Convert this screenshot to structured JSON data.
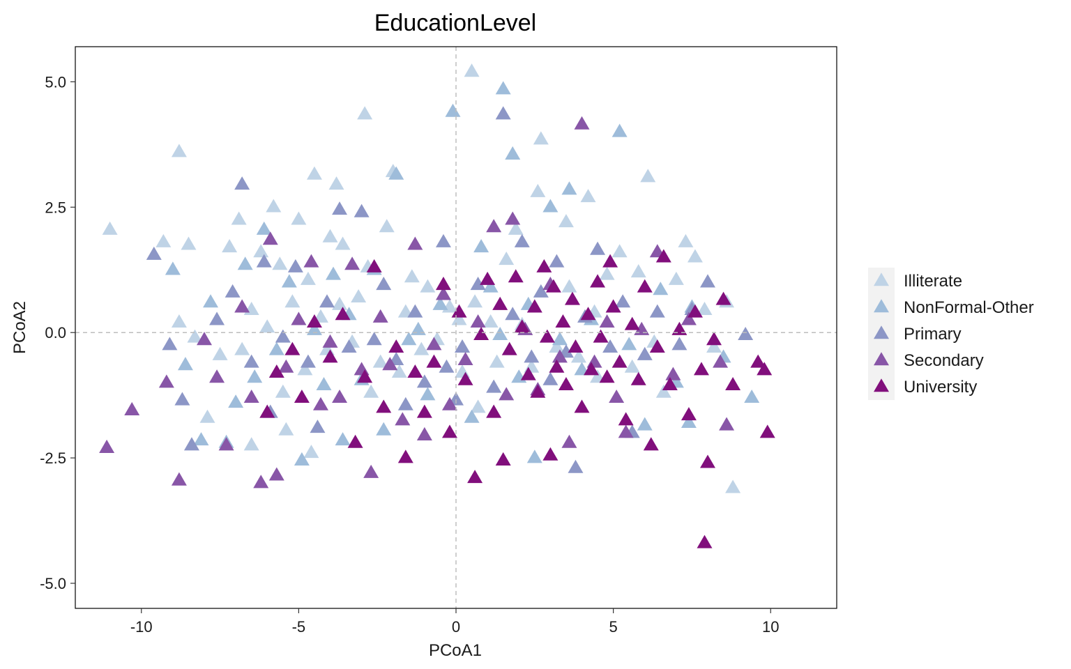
{
  "chart_data": {
    "type": "scatter",
    "title": "EducationLevel",
    "xlabel": "PCoA1",
    "ylabel": "PCoA2",
    "xlim": [
      -12.1,
      12.1
    ],
    "ylim": [
      -5.5,
      5.7
    ],
    "x_ticks": [
      {
        "value": -10,
        "label": "-10"
      },
      {
        "value": -5,
        "label": "-5"
      },
      {
        "value": 0,
        "label": "0"
      },
      {
        "value": 5,
        "label": "5"
      },
      {
        "value": 10,
        "label": "10"
      }
    ],
    "y_ticks": [
      {
        "value": -5,
        "label": "-5.0"
      },
      {
        "value": -2.5,
        "label": "-2.5"
      },
      {
        "value": 0,
        "label": "0.0"
      },
      {
        "value": 2.5,
        "label": "2.5"
      },
      {
        "value": 5,
        "label": "5.0"
      }
    ],
    "reference_lines": {
      "x": 0,
      "y": 0,
      "style": "dashed",
      "color": "#bdbdbd"
    },
    "grid": false,
    "legend_position": "right",
    "marker": "triangle",
    "series": [
      {
        "name": "Illiterate",
        "color": "#bfd3e6",
        "points": [
          [
            -11,
            2.05
          ],
          [
            -9.3,
            1.8
          ],
          [
            -8.8,
            3.6
          ],
          [
            -8.5,
            1.75
          ],
          [
            -8.8,
            0.2
          ],
          [
            -8.3,
            -0.1
          ],
          [
            -7.9,
            -1.7
          ],
          [
            -7.5,
            -0.45
          ],
          [
            -7.2,
            1.7
          ],
          [
            -6.9,
            2.25
          ],
          [
            -6.8,
            -0.35
          ],
          [
            -6.5,
            -2.25
          ],
          [
            -6.5,
            0.45
          ],
          [
            -6.2,
            1.6
          ],
          [
            -6.0,
            0.1
          ],
          [
            -5.8,
            2.5
          ],
          [
            -5.6,
            1.35
          ],
          [
            -5.5,
            -1.2
          ],
          [
            -5.4,
            -1.95
          ],
          [
            -5.2,
            0.6
          ],
          [
            -5.0,
            2.25
          ],
          [
            -4.8,
            -0.75
          ],
          [
            -4.7,
            1.05
          ],
          [
            -4.6,
            -2.4
          ],
          [
            -4.5,
            3.15
          ],
          [
            -4.3,
            0.3
          ],
          [
            -4.1,
            -0.35
          ],
          [
            -4.0,
            1.9
          ],
          [
            -3.8,
            2.95
          ],
          [
            -3.7,
            0.55
          ],
          [
            -3.6,
            1.75
          ],
          [
            -3.3,
            -0.2
          ],
          [
            -3.1,
            0.7
          ],
          [
            -2.9,
            4.35
          ],
          [
            -2.8,
            1.3
          ],
          [
            -2.7,
            -1.2
          ],
          [
            -2.4,
            -0.6
          ],
          [
            -2.2,
            2.1
          ],
          [
            -2.0,
            3.2
          ],
          [
            -1.8,
            -0.8
          ],
          [
            -1.6,
            0.4
          ],
          [
            -1.4,
            1.1
          ],
          [
            -1.1,
            -0.35
          ],
          [
            -0.9,
            0.9
          ],
          [
            -0.6,
            -0.15
          ],
          [
            -0.2,
            0.5
          ],
          [
            0.1,
            0.25
          ],
          [
            0.2,
            -0.8
          ],
          [
            0.5,
            5.2
          ],
          [
            0.6,
            0.6
          ],
          [
            0.7,
            -1.5
          ],
          [
            1.1,
            0.2
          ],
          [
            1.3,
            -0.6
          ],
          [
            1.6,
            1.45
          ],
          [
            1.9,
            2.05
          ],
          [
            2.1,
            0.15
          ],
          [
            2.4,
            -0.7
          ],
          [
            2.6,
            2.8
          ],
          [
            2.7,
            3.85
          ],
          [
            3.2,
            -0.3
          ],
          [
            3.5,
            2.2
          ],
          [
            3.6,
            0.9
          ],
          [
            3.9,
            -0.5
          ],
          [
            4.2,
            2.7
          ],
          [
            4.4,
            0.4
          ],
          [
            4.5,
            -0.9
          ],
          [
            4.8,
            1.15
          ],
          [
            5.2,
            1.6
          ],
          [
            5.6,
            -0.7
          ],
          [
            5.8,
            1.2
          ],
          [
            6.1,
            3.1
          ],
          [
            6.3,
            -0.2
          ],
          [
            6.6,
            -1.2
          ],
          [
            7.0,
            1.05
          ],
          [
            7.3,
            1.8
          ],
          [
            7.6,
            1.5
          ],
          [
            7.9,
            0.45
          ],
          [
            8.2,
            -0.3
          ],
          [
            8.6,
            0.6
          ],
          [
            8.8,
            -3.1
          ]
        ]
      },
      {
        "name": "NonFormal-Other",
        "color": "#9ebcda",
        "points": [
          [
            -9.0,
            1.25
          ],
          [
            -8.6,
            -0.65
          ],
          [
            -8.1,
            -2.15
          ],
          [
            -7.8,
            0.6
          ],
          [
            -7.3,
            -2.2
          ],
          [
            -7.0,
            -1.4
          ],
          [
            -6.7,
            1.35
          ],
          [
            -6.4,
            -0.9
          ],
          [
            -6.1,
            2.05
          ],
          [
            -5.7,
            -0.35
          ],
          [
            -5.3,
            1.0
          ],
          [
            -4.9,
            -2.55
          ],
          [
            -4.5,
            0.05
          ],
          [
            -4.2,
            -1.05
          ],
          [
            -3.9,
            1.15
          ],
          [
            -3.6,
            -2.15
          ],
          [
            -3.4,
            0.35
          ],
          [
            -3.0,
            -0.95
          ],
          [
            -2.6,
            1.25
          ],
          [
            -2.3,
            -1.95
          ],
          [
            -1.9,
            3.15
          ],
          [
            -1.5,
            -0.15
          ],
          [
            -1.2,
            0.05
          ],
          [
            -0.9,
            -1.25
          ],
          [
            -0.5,
            0.55
          ],
          [
            -0.1,
            4.4
          ],
          [
            0.2,
            -0.3
          ],
          [
            0.5,
            -1.7
          ],
          [
            0.8,
            1.7
          ],
          [
            1.1,
            0.9
          ],
          [
            1.4,
            -0.05
          ],
          [
            1.5,
            4.85
          ],
          [
            1.8,
            3.55
          ],
          [
            2.0,
            -0.9
          ],
          [
            2.3,
            0.55
          ],
          [
            2.5,
            -2.5
          ],
          [
            3.0,
            2.5
          ],
          [
            3.3,
            -0.15
          ],
          [
            3.6,
            2.85
          ],
          [
            4.0,
            -0.75
          ],
          [
            4.3,
            0.25
          ],
          [
            5.2,
            4.0
          ],
          [
            5.5,
            -0.25
          ],
          [
            6.0,
            -1.85
          ],
          [
            6.5,
            0.85
          ],
          [
            7.0,
            -1.0
          ],
          [
            7.4,
            -1.8
          ],
          [
            7.5,
            0.5
          ],
          [
            8.5,
            -0.5
          ],
          [
            9.4,
            -1.3
          ]
        ]
      },
      {
        "name": "Primary",
        "color": "#8c96c6",
        "points": [
          [
            -9.6,
            1.55
          ],
          [
            -9.1,
            -0.25
          ],
          [
            -8.7,
            -1.35
          ],
          [
            -8.4,
            -2.25
          ],
          [
            -7.6,
            0.25
          ],
          [
            -7.1,
            0.8
          ],
          [
            -6.8,
            2.95
          ],
          [
            -6.5,
            -0.6
          ],
          [
            -6.1,
            1.4
          ],
          [
            -5.9,
            -1.6
          ],
          [
            -5.5,
            -0.1
          ],
          [
            -5.1,
            1.3
          ],
          [
            -4.7,
            -0.6
          ],
          [
            -4.4,
            -1.9
          ],
          [
            -4.1,
            0.6
          ],
          [
            -3.7,
            2.45
          ],
          [
            -3.4,
            -0.3
          ],
          [
            -3.0,
            2.4
          ],
          [
            -2.6,
            -0.15
          ],
          [
            -2.3,
            0.95
          ],
          [
            -1.9,
            -0.55
          ],
          [
            -1.6,
            -1.45
          ],
          [
            -1.3,
            0.4
          ],
          [
            -1.0,
            -1.0
          ],
          [
            -0.4,
            1.8
          ],
          [
            -0.3,
            -0.7
          ],
          [
            0.0,
            -1.35
          ],
          [
            0.2,
            -0.3
          ],
          [
            0.7,
            0.95
          ],
          [
            1.2,
            -1.1
          ],
          [
            1.5,
            4.35
          ],
          [
            1.8,
            0.35
          ],
          [
            2.1,
            1.8
          ],
          [
            2.4,
            -0.5
          ],
          [
            2.7,
            0.8
          ],
          [
            3.0,
            -0.95
          ],
          [
            3.2,
            1.4
          ],
          [
            3.5,
            -0.4
          ],
          [
            3.8,
            -2.7
          ],
          [
            4.1,
            0.3
          ],
          [
            4.5,
            1.65
          ],
          [
            4.9,
            -0.3
          ],
          [
            5.3,
            0.6
          ],
          [
            5.6,
            -2.0
          ],
          [
            6.0,
            -0.45
          ],
          [
            6.4,
            0.4
          ],
          [
            7.1,
            -0.25
          ],
          [
            7.5,
            0.45
          ],
          [
            8.0,
            1.0
          ],
          [
            9.2,
            -0.05
          ]
        ]
      },
      {
        "name": "Secondary",
        "color": "#8856a7",
        "points": [
          [
            -11.1,
            -2.3
          ],
          [
            -10.3,
            -1.55
          ],
          [
            -9.2,
            -1.0
          ],
          [
            -8.8,
            -2.95
          ],
          [
            -8.0,
            -0.15
          ],
          [
            -7.6,
            -0.9
          ],
          [
            -7.3,
            -2.25
          ],
          [
            -6.8,
            0.5
          ],
          [
            -6.5,
            -1.3
          ],
          [
            -6.2,
            -3.0
          ],
          [
            -5.9,
            1.85
          ],
          [
            -5.7,
            -2.85
          ],
          [
            -5.4,
            -0.7
          ],
          [
            -5.0,
            0.25
          ],
          [
            -4.6,
            1.4
          ],
          [
            -4.3,
            -1.45
          ],
          [
            -4.0,
            -0.2
          ],
          [
            -3.7,
            -1.3
          ],
          [
            -3.3,
            1.35
          ],
          [
            -3.0,
            -0.75
          ],
          [
            -2.7,
            -2.8
          ],
          [
            -2.4,
            0.3
          ],
          [
            -2.1,
            -0.65
          ],
          [
            -1.7,
            -1.75
          ],
          [
            -1.3,
            1.75
          ],
          [
            -1.0,
            -2.05
          ],
          [
            -0.7,
            -0.25
          ],
          [
            -0.4,
            0.75
          ],
          [
            -0.2,
            -1.45
          ],
          [
            0.3,
            -0.55
          ],
          [
            0.7,
            0.2
          ],
          [
            1.2,
            2.1
          ],
          [
            1.6,
            -1.25
          ],
          [
            1.8,
            2.25
          ],
          [
            2.2,
            0.05
          ],
          [
            2.6,
            -1.15
          ],
          [
            3.0,
            0.95
          ],
          [
            3.3,
            -0.5
          ],
          [
            3.6,
            -2.2
          ],
          [
            4.0,
            4.15
          ],
          [
            4.4,
            -0.6
          ],
          [
            4.8,
            0.2
          ],
          [
            5.1,
            -1.3
          ],
          [
            5.4,
            -2.0
          ],
          [
            5.9,
            0.05
          ],
          [
            6.4,
            1.6
          ],
          [
            6.9,
            -0.85
          ],
          [
            7.4,
            0.25
          ],
          [
            8.4,
            -0.6
          ],
          [
            8.6,
            -1.85
          ]
        ]
      },
      {
        "name": "University",
        "color": "#810f7c",
        "points": [
          [
            -6.0,
            -1.6
          ],
          [
            -5.7,
            -0.8
          ],
          [
            -5.2,
            -0.35
          ],
          [
            -4.9,
            -1.3
          ],
          [
            -4.5,
            0.2
          ],
          [
            -4.0,
            -0.5
          ],
          [
            -3.6,
            0.35
          ],
          [
            -3.2,
            -2.2
          ],
          [
            -2.9,
            -0.9
          ],
          [
            -2.6,
            1.3
          ],
          [
            -2.3,
            -1.5
          ],
          [
            -1.9,
            -0.3
          ],
          [
            -1.6,
            -2.5
          ],
          [
            -1.3,
            -0.8
          ],
          [
            -1.0,
            -1.6
          ],
          [
            -0.7,
            -0.6
          ],
          [
            -0.4,
            0.95
          ],
          [
            -0.2,
            -2.0
          ],
          [
            0.1,
            0.4
          ],
          [
            0.3,
            -0.95
          ],
          [
            0.6,
            -2.9
          ],
          [
            0.8,
            -0.05
          ],
          [
            1.0,
            1.05
          ],
          [
            1.2,
            -1.6
          ],
          [
            1.4,
            0.55
          ],
          [
            1.5,
            -2.55
          ],
          [
            1.7,
            -0.35
          ],
          [
            1.9,
            1.1
          ],
          [
            2.1,
            0.1
          ],
          [
            2.3,
            -0.85
          ],
          [
            2.5,
            0.5
          ],
          [
            2.6,
            -1.2
          ],
          [
            2.8,
            1.3
          ],
          [
            2.9,
            -0.1
          ],
          [
            3.0,
            -2.45
          ],
          [
            3.1,
            0.9
          ],
          [
            3.2,
            -0.7
          ],
          [
            3.4,
            0.2
          ],
          [
            3.5,
            -1.05
          ],
          [
            3.7,
            0.65
          ],
          [
            3.8,
            -0.3
          ],
          [
            4.0,
            -1.5
          ],
          [
            4.2,
            0.35
          ],
          [
            4.3,
            -0.75
          ],
          [
            4.5,
            1.0
          ],
          [
            4.6,
            -0.1
          ],
          [
            4.8,
            -0.9
          ],
          [
            4.9,
            1.4
          ],
          [
            5.0,
            0.5
          ],
          [
            5.2,
            -0.6
          ],
          [
            5.4,
            -1.75
          ],
          [
            5.6,
            0.15
          ],
          [
            5.8,
            -0.95
          ],
          [
            6.0,
            0.9
          ],
          [
            6.2,
            -2.25
          ],
          [
            6.4,
            -0.3
          ],
          [
            6.6,
            1.5
          ],
          [
            6.8,
            -1.05
          ],
          [
            7.1,
            0.05
          ],
          [
            7.4,
            -1.65
          ],
          [
            7.6,
            0.4
          ],
          [
            7.8,
            -0.75
          ],
          [
            7.9,
            -4.2
          ],
          [
            8.0,
            -2.6
          ],
          [
            8.2,
            -0.15
          ],
          [
            8.5,
            0.65
          ],
          [
            8.8,
            -1.05
          ],
          [
            9.6,
            -0.6
          ],
          [
            9.8,
            -0.75
          ],
          [
            9.9,
            -2.0
          ]
        ]
      }
    ]
  }
}
